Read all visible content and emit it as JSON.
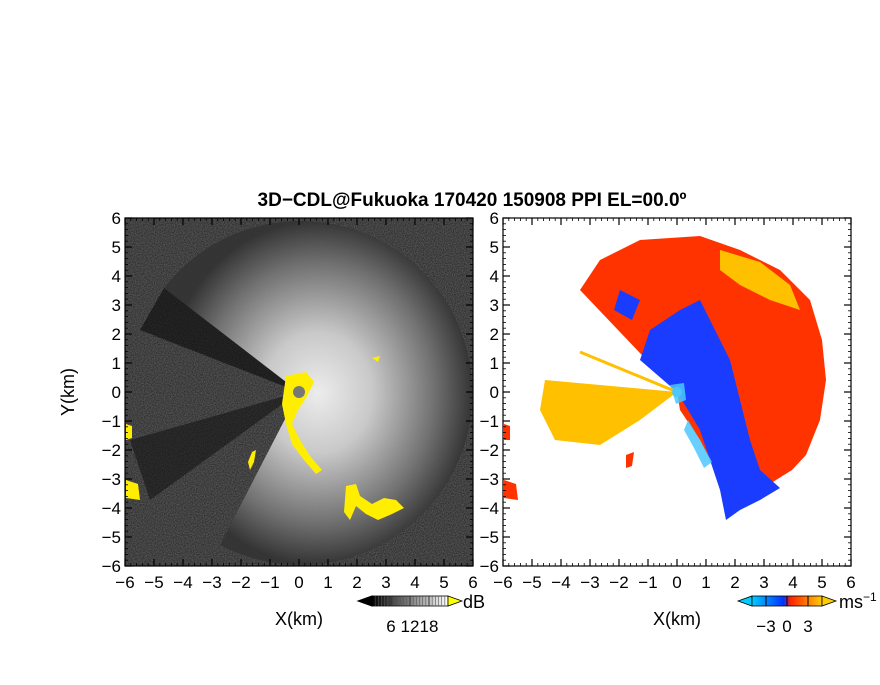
{
  "title": "3D−CDL@Fukuoka 170420 150908 PPI EL=00.0º",
  "chart_data": [
    {
      "type": "heatmap",
      "panel": "reflectivity",
      "xlabel": "X(km)",
      "ylabel": "Y(km)",
      "xlim": [
        -6,
        6
      ],
      "ylim": [
        -6,
        6
      ],
      "x_ticks": [
        -6,
        -5,
        -4,
        -3,
        -2,
        -1,
        0,
        1,
        2,
        3,
        4,
        5,
        6
      ],
      "y_ticks": [
        -6,
        -5,
        -4,
        -3,
        -2,
        -1,
        0,
        1,
        2,
        3,
        4,
        5,
        6
      ],
      "x_tick_labels": [
        "−6",
        "−5",
        "−4",
        "−3",
        "−2",
        "−1",
        "0",
        "1",
        "2",
        "3",
        "4",
        "5",
        "6"
      ],
      "y_tick_labels": [
        "−6",
        "−5",
        "−4",
        "−3",
        "−2",
        "−1",
        "0",
        "1",
        "2",
        "3",
        "4",
        "5",
        "6"
      ],
      "colorbar": {
        "unit": "dB",
        "ticks": [
          6,
          12,
          18
        ],
        "tick_labels": [
          "6",
          "12",
          "18"
        ],
        "range": [
          0,
          24
        ],
        "colors": [
          "#000000",
          "#ffffff"
        ],
        "over_color": "#ffff00"
      },
      "background_color": "#1a1a1a",
      "highlight_color": "#ffee00"
    },
    {
      "type": "heatmap",
      "panel": "doppler-velocity",
      "xlabel": "X(km)",
      "xlim": [
        -6,
        6
      ],
      "ylim": [
        -6,
        6
      ],
      "x_ticks": [
        -6,
        -5,
        -4,
        -3,
        -2,
        -1,
        0,
        1,
        2,
        3,
        4,
        5,
        6
      ],
      "y_ticks": [
        -6,
        -5,
        -4,
        -3,
        -2,
        -1,
        0,
        1,
        2,
        3,
        4,
        5,
        6
      ],
      "x_tick_labels": [
        "−6",
        "−5",
        "−4",
        "−3",
        "−2",
        "−1",
        "0",
        "1",
        "2",
        "3",
        "4",
        "5",
        "6"
      ],
      "y_tick_labels": [
        "−6",
        "−5",
        "−4",
        "−3",
        "−2",
        "−1",
        "0",
        "1",
        "2",
        "3",
        "4",
        "5",
        "6"
      ],
      "colorbar": {
        "unit": "ms",
        "unit_exponent": "−1",
        "ticks": [
          -3,
          0,
          3
        ],
        "tick_labels": [
          "−3",
          "0",
          "3"
        ],
        "range": [
          -5,
          5
        ],
        "colors": [
          "#00ccff",
          "#0033ff",
          "#ff2200",
          "#ffcc00"
        ]
      },
      "colors": {
        "approaching": "#1a3cff",
        "receding": "#ff3300",
        "strong_receding": "#ffc000",
        "near_zero": "#4cc8ff"
      }
    }
  ]
}
